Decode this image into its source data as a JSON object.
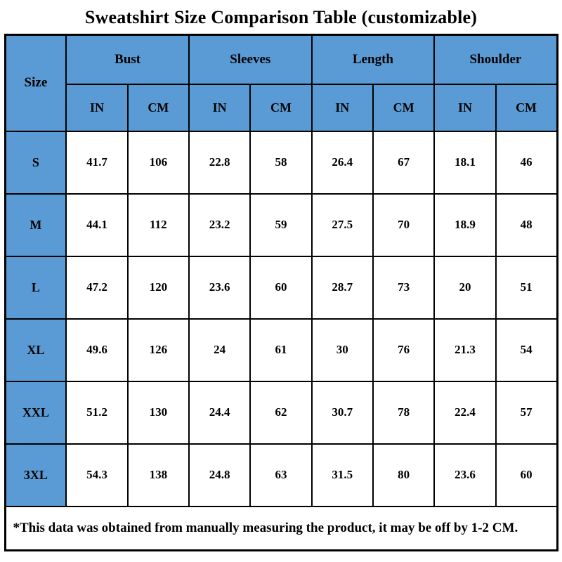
{
  "title": "Sweatshirt Size Comparison Table (customizable)",
  "colors": {
    "header_blue": "#5B9BD5",
    "border": "#000000",
    "cell_background": "#FFFFFF",
    "text": "#000000"
  },
  "table": {
    "size_header": "Size",
    "groups": [
      {
        "label": "Bust"
      },
      {
        "label": "Sleeves"
      },
      {
        "label": "Length"
      },
      {
        "label": "Shoulder"
      }
    ],
    "unit_headers": [
      "IN",
      "CM"
    ],
    "rows": [
      {
        "size": "S",
        "values": [
          "41.7",
          "106",
          "22.8",
          "58",
          "26.4",
          "67",
          "18.1",
          "46"
        ]
      },
      {
        "size": "M",
        "values": [
          "44.1",
          "112",
          "23.2",
          "59",
          "27.5",
          "70",
          "18.9",
          "48"
        ]
      },
      {
        "size": "L",
        "values": [
          "47.2",
          "120",
          "23.6",
          "60",
          "28.7",
          "73",
          "20",
          "51"
        ]
      },
      {
        "size": "XL",
        "values": [
          "49.6",
          "126",
          "24",
          "61",
          "30",
          "76",
          "21.3",
          "54"
        ]
      },
      {
        "size": "XXL",
        "values": [
          "51.2",
          "130",
          "24.4",
          "62",
          "30.7",
          "78",
          "22.4",
          "57"
        ]
      },
      {
        "size": "3XL",
        "values": [
          "54.3",
          "138",
          "24.8",
          "63",
          "31.5",
          "80",
          "23.6",
          "60"
        ]
      }
    ],
    "footnote": "*This data was obtained from manually measuring the product, it may be off by 1-2 CM."
  }
}
